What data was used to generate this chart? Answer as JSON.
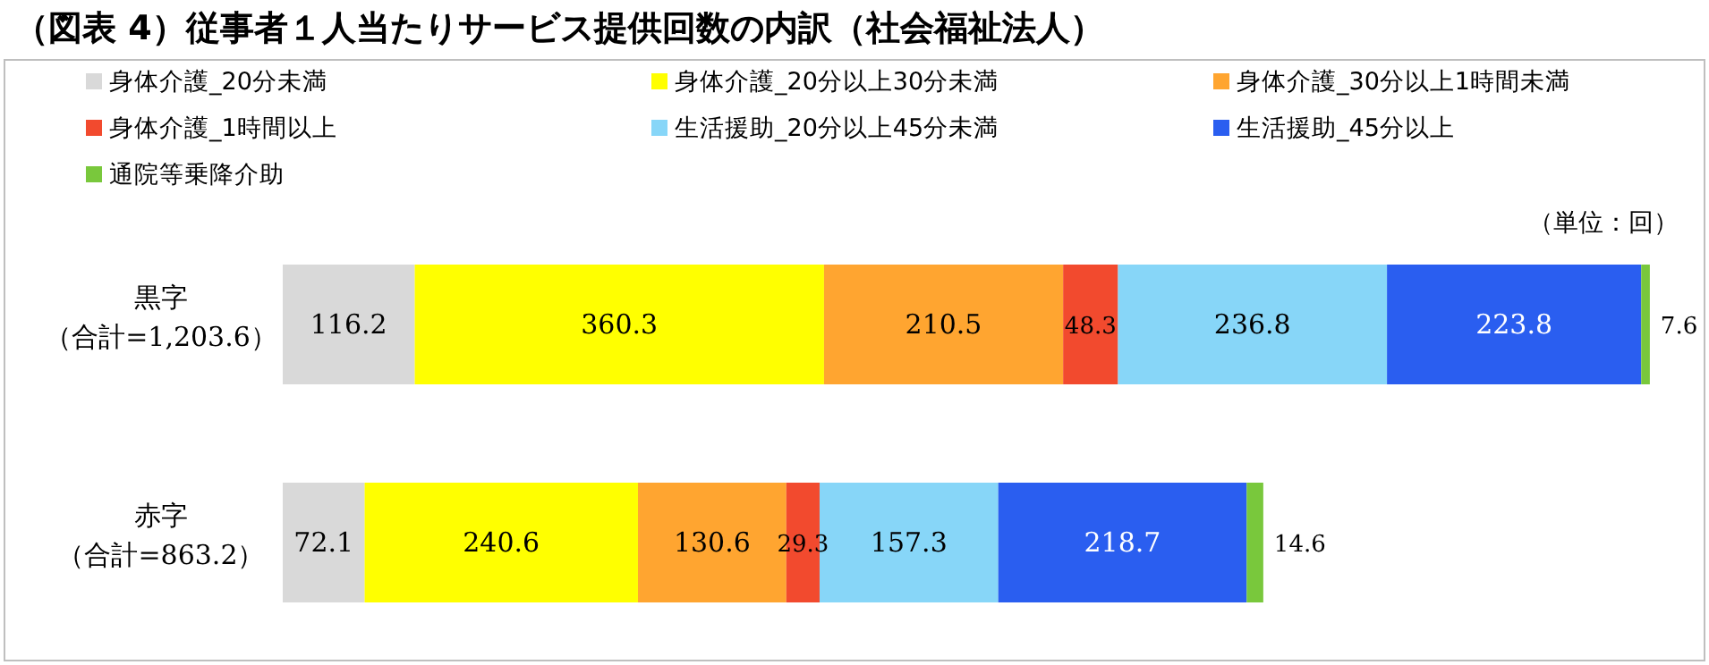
{
  "chart_data": {
    "type": "bar",
    "orientation": "horizontal",
    "stacked": true,
    "data_labels": true,
    "legend": "top",
    "title": "（図表 4）従事者１人当たりサービス提供回数の内訳（社会福祉法人）",
    "annotations": [
      "（単位：回）"
    ],
    "categories": [
      "黒字（合計=1,203.6）",
      "赤字（合計=863.2）"
    ],
    "series": [
      {
        "name": "身体介護_20分未満",
        "color": "#d9d9d9",
        "values": [
          116.2,
          72.1
        ]
      },
      {
        "name": "身体介護_20分以上30分未満",
        "color": "#ffff00",
        "values": [
          360.3,
          240.6
        ]
      },
      {
        "name": "身体介護_30分以上1時間未満",
        "color": "#ffa530",
        "values": [
          210.5,
          130.6
        ]
      },
      {
        "name": "身体介護_1時間以上",
        "color": "#f24a2e",
        "values": [
          48.3,
          29.3
        ]
      },
      {
        "name": "生活援助_20分以上45分未満",
        "color": "#87d6f8",
        "values": [
          236.8,
          157.3
        ]
      },
      {
        "name": "生活援助_45分以上",
        "color": "#2a5ef0",
        "values": [
          223.8,
          218.7
        ]
      },
      {
        "name": "通院等乗降介助",
        "color": "#79c83c",
        "values": [
          7.6,
          14.6
        ]
      }
    ]
  }
}
